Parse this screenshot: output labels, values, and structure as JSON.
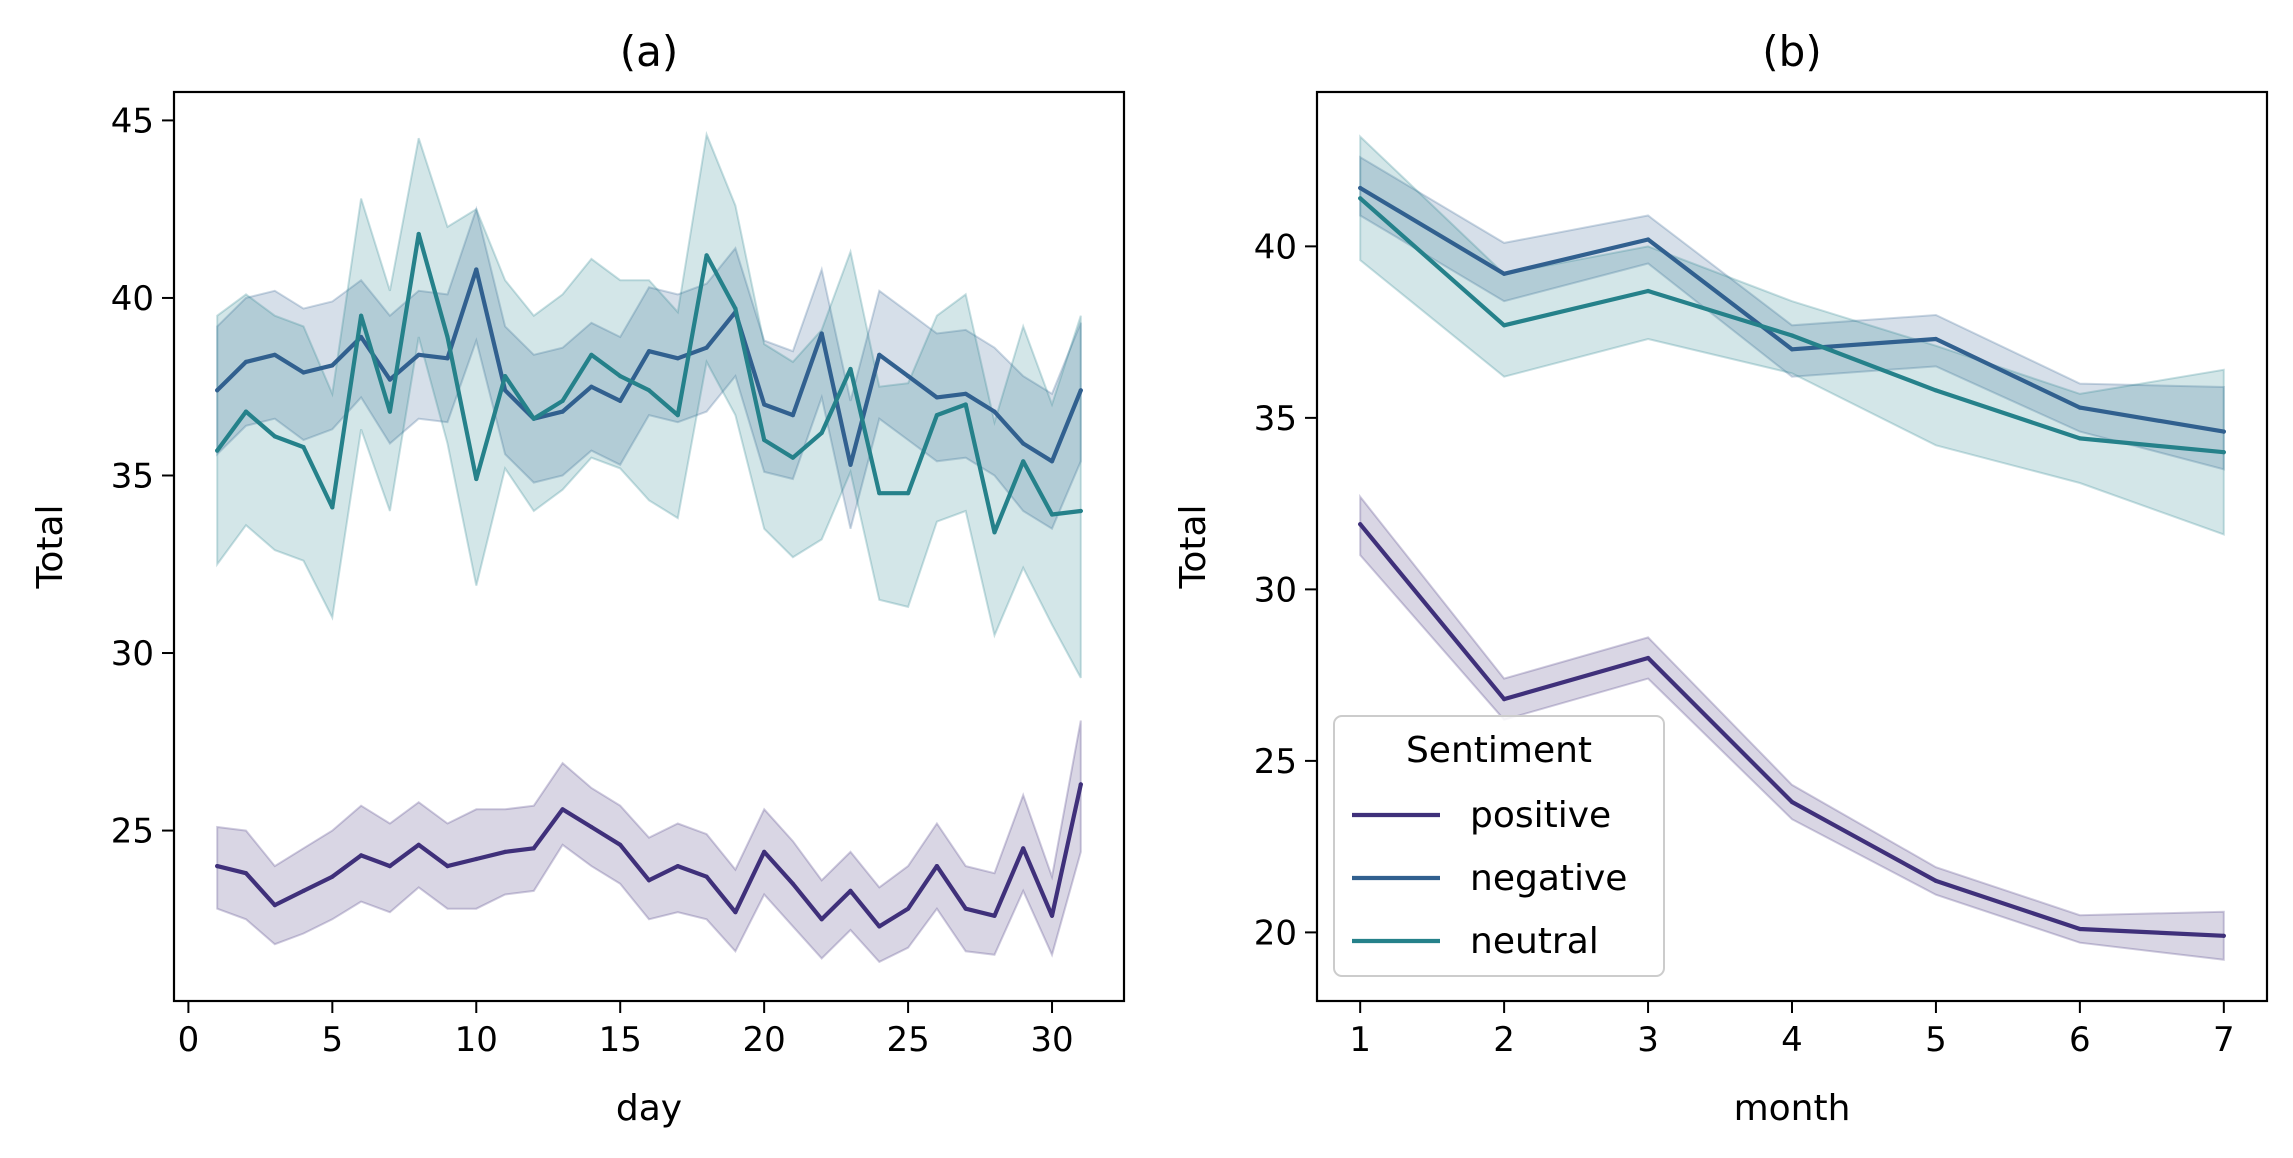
{
  "colors": {
    "positive": "#3f307a",
    "negative": "#31608f",
    "neutral": "#25818a"
  },
  "legend": {
    "title": "Sentiment",
    "entries": [
      "positive",
      "negative",
      "neutral"
    ],
    "placement": "lower-left of panel (b)"
  },
  "chart_data": [
    {
      "type": "line",
      "title": "(a)",
      "xlabel": "day",
      "ylabel": "Total",
      "xlim": [
        -0.5,
        32.5
      ],
      "ylim": [
        20.2,
        45.8
      ],
      "xticks": [
        0,
        5,
        10,
        15,
        20,
        25,
        30
      ],
      "yticks": [
        25,
        30,
        35,
        40,
        45
      ],
      "grid": false,
      "x": [
        1,
        2,
        3,
        4,
        5,
        6,
        7,
        8,
        9,
        10,
        11,
        12,
        13,
        14,
        15,
        16,
        17,
        18,
        19,
        20,
        21,
        22,
        23,
        24,
        25,
        26,
        27,
        28,
        29,
        30,
        31
      ],
      "series": [
        {
          "name": "positive",
          "values": [
            24.0,
            23.8,
            22.9,
            23.3,
            23.7,
            24.3,
            24.0,
            24.6,
            24.0,
            24.2,
            24.4,
            24.5,
            25.6,
            25.1,
            24.6,
            23.6,
            24.0,
            23.7,
            22.7,
            24.4,
            23.5,
            22.5,
            23.3,
            22.3,
            22.8,
            24.0,
            22.8,
            22.6,
            24.5,
            22.6,
            26.3
          ],
          "lower": [
            22.8,
            22.5,
            21.8,
            22.1,
            22.5,
            23.0,
            22.7,
            23.4,
            22.8,
            22.8,
            23.2,
            23.3,
            24.6,
            24.0,
            23.5,
            22.5,
            22.7,
            22.5,
            21.6,
            23.2,
            22.3,
            21.4,
            22.2,
            21.3,
            21.7,
            22.8,
            21.6,
            21.5,
            23.3,
            21.5,
            24.4
          ],
          "upper": [
            25.1,
            25.0,
            24.0,
            24.5,
            25.0,
            25.7,
            25.2,
            25.8,
            25.2,
            25.6,
            25.6,
            25.7,
            26.9,
            26.2,
            25.7,
            24.8,
            25.2,
            24.9,
            23.9,
            25.6,
            24.7,
            23.6,
            24.4,
            23.4,
            24.0,
            25.2,
            24.0,
            23.8,
            26.0,
            23.7,
            28.1
          ]
        },
        {
          "name": "negative",
          "values": [
            37.4,
            38.2,
            38.4,
            37.9,
            38.1,
            38.9,
            37.7,
            38.4,
            38.3,
            40.8,
            37.4,
            36.6,
            36.8,
            37.5,
            37.1,
            38.5,
            38.3,
            38.6,
            39.6,
            37.0,
            36.7,
            39.0,
            35.3,
            38.4,
            37.8,
            37.2,
            37.3,
            36.8,
            35.9,
            35.4,
            37.4
          ],
          "lower": [
            35.6,
            36.4,
            36.6,
            36.0,
            36.3,
            37.2,
            35.9,
            36.6,
            36.5,
            38.8,
            35.6,
            34.8,
            35.0,
            35.7,
            35.3,
            36.7,
            36.5,
            36.8,
            37.8,
            35.1,
            34.9,
            37.2,
            33.5,
            36.6,
            36.0,
            35.4,
            35.5,
            35.0,
            34.0,
            33.5,
            35.4
          ],
          "upper": [
            39.2,
            40.0,
            40.2,
            39.7,
            39.9,
            40.5,
            39.5,
            40.2,
            40.1,
            42.5,
            39.2,
            38.4,
            38.6,
            39.3,
            38.9,
            40.3,
            40.1,
            40.4,
            41.4,
            38.8,
            38.5,
            40.8,
            37.1,
            40.2,
            39.6,
            39.0,
            39.1,
            38.6,
            37.8,
            37.3,
            39.3
          ]
        },
        {
          "name": "neutral",
          "values": [
            35.7,
            36.8,
            36.1,
            35.8,
            34.1,
            39.5,
            36.8,
            41.8,
            38.9,
            34.9,
            37.8,
            36.6,
            37.1,
            38.4,
            37.8,
            37.4,
            36.7,
            41.2,
            39.7,
            36.0,
            35.5,
            36.2,
            38.0,
            34.5,
            34.5,
            36.7,
            37.0,
            33.4,
            35.4,
            33.9,
            34.0
          ],
          "lower": [
            32.5,
            33.6,
            32.9,
            32.6,
            31.0,
            36.3,
            34.0,
            38.9,
            35.9,
            31.9,
            35.2,
            34.0,
            34.6,
            35.5,
            35.2,
            34.3,
            33.8,
            38.2,
            36.7,
            33.5,
            32.7,
            33.2,
            35.1,
            31.5,
            31.3,
            33.7,
            34.0,
            30.5,
            32.4,
            30.8,
            29.3
          ],
          "upper": [
            39.5,
            40.1,
            39.5,
            39.2,
            37.3,
            42.8,
            40.2,
            44.5,
            42.0,
            42.5,
            40.5,
            39.5,
            40.1,
            41.1,
            40.5,
            40.5,
            39.6,
            44.6,
            42.6,
            38.7,
            38.2,
            39.1,
            41.3,
            37.5,
            37.6,
            39.5,
            40.1,
            36.5,
            39.2,
            37.0,
            39.5
          ]
        }
      ]
    },
    {
      "type": "line",
      "title": "(b)",
      "xlabel": "month",
      "ylabel": "Total",
      "xlim": [
        0.7,
        7.3
      ],
      "ylim": [
        18.0,
        44.5
      ],
      "xticks": [
        1,
        2,
        3,
        4,
        5,
        6,
        7
      ],
      "yticks": [
        20,
        25,
        30,
        35,
        40
      ],
      "grid": false,
      "x": [
        1,
        2,
        3,
        4,
        5,
        6,
        7
      ],
      "series": [
        {
          "name": "positive",
          "values": [
            31.9,
            26.8,
            28.0,
            23.8,
            21.5,
            20.1,
            19.9
          ],
          "lower": [
            31.0,
            26.2,
            27.4,
            23.3,
            21.1,
            19.7,
            19.2
          ],
          "upper": [
            32.7,
            27.4,
            28.6,
            24.3,
            21.9,
            20.5,
            20.6
          ]
        },
        {
          "name": "negative",
          "values": [
            41.7,
            39.2,
            40.2,
            37.0,
            37.3,
            35.3,
            34.6
          ],
          "lower": [
            40.9,
            38.4,
            39.5,
            36.2,
            36.5,
            34.6,
            33.5
          ],
          "upper": [
            42.6,
            40.1,
            40.9,
            37.7,
            38.0,
            36.0,
            35.9
          ]
        },
        {
          "name": "neutral",
          "values": [
            41.4,
            37.7,
            38.7,
            37.4,
            35.8,
            34.4,
            34.0
          ],
          "lower": [
            39.6,
            36.2,
            37.3,
            36.3,
            34.2,
            33.1,
            31.6
          ],
          "upper": [
            43.2,
            39.2,
            40.0,
            38.4,
            37.1,
            35.7,
            36.4
          ]
        }
      ]
    }
  ]
}
